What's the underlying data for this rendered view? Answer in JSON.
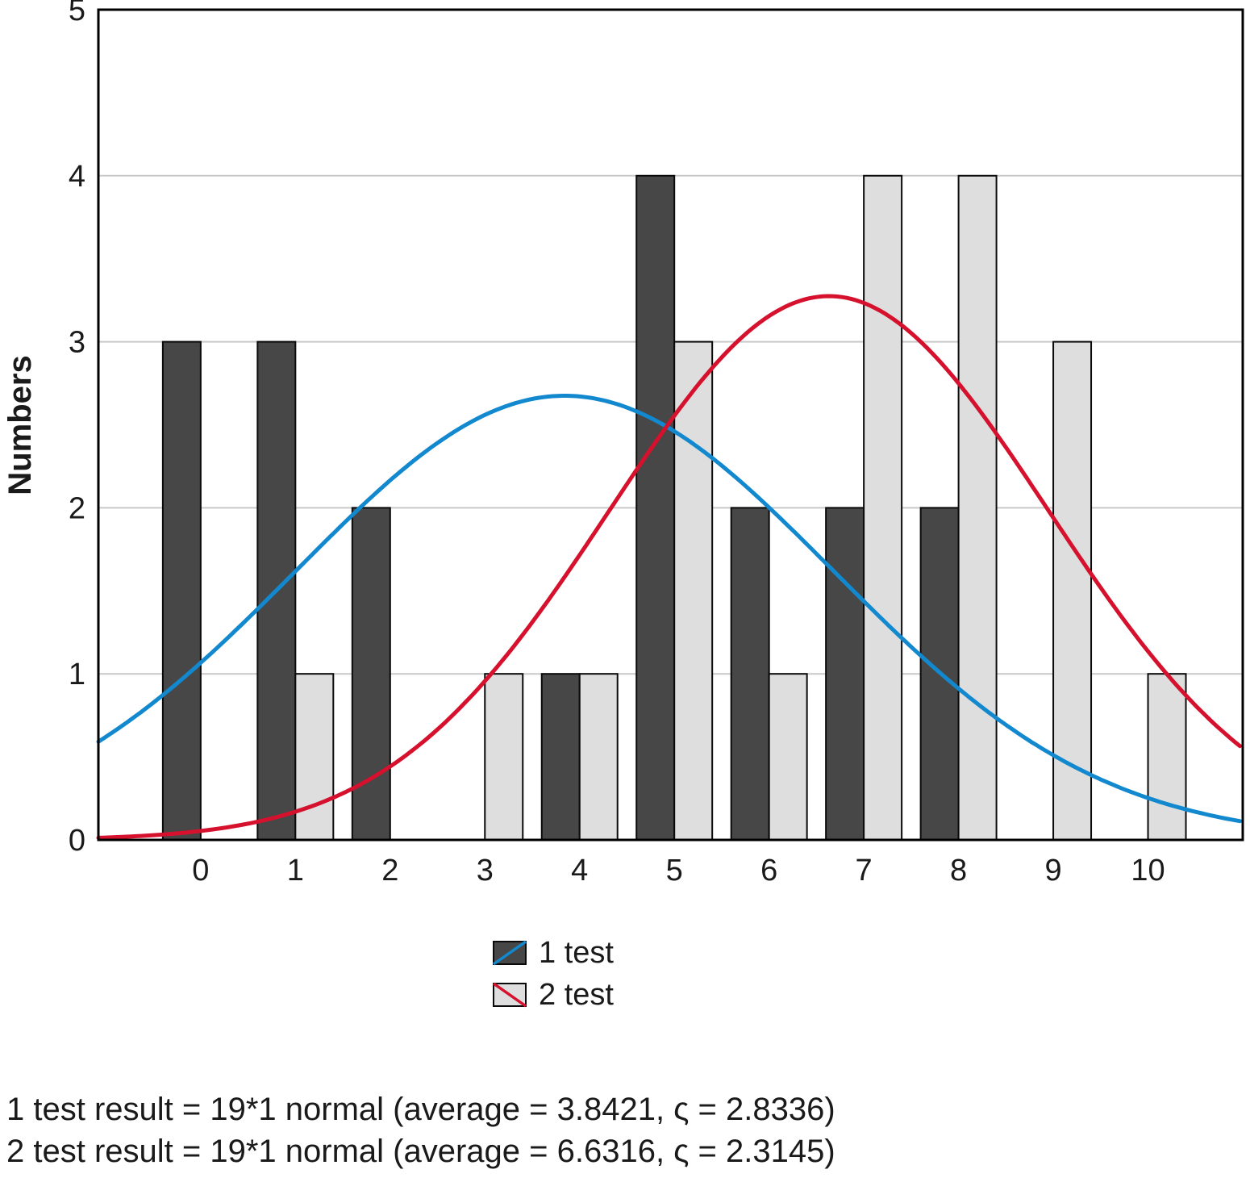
{
  "figure": {
    "ylabel": "Numbers",
    "legend": [
      {
        "label": "1 test"
      },
      {
        "label": "2 test"
      }
    ],
    "captions": [
      "1 test result = 19*1 normal (average = 3.8421, ς = 2.8336)",
      "2 test result = 19*1 normal (average = 6.6316, ς = 2.3145)"
    ]
  },
  "chart_data": {
    "type": "bar",
    "subtype": "histogram-with-normal-fit-curves",
    "title": "",
    "xlabel": "",
    "ylabel": "Numbers",
    "xlim": [
      -1.08,
      11.0
    ],
    "ylim": [
      0,
      5
    ],
    "xticks": [
      0,
      1,
      2,
      3,
      4,
      5,
      6,
      7,
      8,
      9,
      10
    ],
    "yticks": [
      0,
      1,
      2,
      3,
      4,
      5
    ],
    "grid": "horizontal",
    "legend_position": "below-center",
    "bin_width": 0.4,
    "categories": [
      0,
      1,
      2,
      3,
      4,
      5,
      6,
      7,
      8,
      9,
      10
    ],
    "series": [
      {
        "name": "1 test",
        "values": [
          3,
          3,
          2,
          0,
          1,
          4,
          2,
          2,
          2,
          0,
          0
        ],
        "n": 19,
        "mean": 3.8421,
        "sigma": 2.8336,
        "bar_color": "#474747",
        "curve_color": "#1288cf",
        "offset": -0.4
      },
      {
        "name": "2 test",
        "values": [
          0,
          1,
          0,
          1,
          1,
          3,
          1,
          4,
          4,
          3,
          1
        ],
        "n": 19,
        "mean": 6.6316,
        "sigma": 2.3145,
        "bar_color": "#dedede",
        "curve_color": "#d5112d",
        "offset": 0.0
      }
    ],
    "colors": {
      "grid": "#c9c9c9",
      "axis_box": "#000000",
      "bar_outline": "#0a0a0a",
      "text": "#1a1a1a"
    }
  }
}
